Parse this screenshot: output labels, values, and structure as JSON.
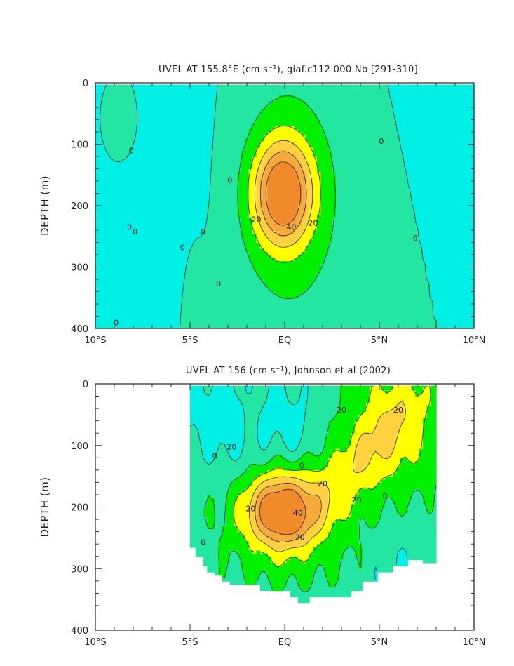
{
  "chart_data": [
    {
      "type": "heatmap",
      "title": "UVEL AT 155.8°E (cm s⁻¹), giaf.c112.000.Nb [291-310]",
      "xlabel": "",
      "ylabel": "DEPTH (m)",
      "xlim": [
        -10,
        10
      ],
      "ylim": [
        400,
        0
      ],
      "x_ticks": [
        -10,
        -5,
        0,
        5,
        10
      ],
      "x_tick_labels": [
        "10°S",
        "5°S",
        "EQ",
        "5°N",
        "10°N"
      ],
      "y_ticks": [
        0,
        100,
        200,
        300,
        400
      ],
      "y_tick_labels": [
        "0",
        "100",
        "200",
        "300",
        "400"
      ],
      "data_extent": {
        "x": [
          -10,
          10
        ],
        "depth": [
          3,
          400
        ]
      },
      "contour_interval": 10,
      "jet_core": {
        "latitude": -0.1,
        "depth": 180,
        "max_speed": 55
      },
      "contour_labels": [
        {
          "text": "0",
          "lat": -8.1,
          "depth": 110
        },
        {
          "text": "0",
          "lat": -8.2,
          "depth": 235
        },
        {
          "text": "0",
          "lat": -7.9,
          "depth": 242
        },
        {
          "text": "0",
          "lat": -5.4,
          "depth": 268
        },
        {
          "text": "0",
          "lat": -4.3,
          "depth": 242
        },
        {
          "text": "0",
          "lat": -3.5,
          "depth": 327
        },
        {
          "text": "0",
          "lat": -8.9,
          "depth": 390
        },
        {
          "text": "0",
          "lat": -2.9,
          "depth": 158
        },
        {
          "text": "0",
          "lat": 5.1,
          "depth": 95
        },
        {
          "text": "0",
          "lat": 6.9,
          "depth": 253
        },
        {
          "text": "20",
          "lat": -1.5,
          "depth": 222
        },
        {
          "text": "40",
          "lat": 0.35,
          "depth": 235
        },
        {
          "text": "20",
          "lat": 1.5,
          "depth": 228
        }
      ]
    },
    {
      "type": "heatmap",
      "title": "UVEL AT 156 (cm s⁻¹), Johnson et al (2002)",
      "xlabel": "",
      "ylabel": "DEPTH (m)",
      "xlim": [
        -10,
        10
      ],
      "ylim": [
        400,
        0
      ],
      "x_ticks": [
        -10,
        -5,
        0,
        5,
        10
      ],
      "x_tick_labels": [
        "10°S",
        "5°S",
        "EQ",
        "5°N",
        "10°N"
      ],
      "y_ticks": [
        0,
        100,
        200,
        300,
        400
      ],
      "y_tick_labels": [
        "0",
        "100",
        "200",
        "300",
        "400"
      ],
      "data_extent": {
        "x": [
          -5,
          8
        ],
        "depth": [
          3,
          355
        ]
      },
      "contour_interval": 10,
      "jet_core": {
        "latitude": -0.2,
        "depth": 205,
        "max_speed": 50
      },
      "contour_labels": [
        {
          "text": "20",
          "lat": 3.0,
          "depth": 42
        },
        {
          "text": "20",
          "lat": 6.0,
          "depth": 42
        },
        {
          "text": "20",
          "lat": -2.8,
          "depth": 102
        },
        {
          "text": "0",
          "lat": -3.7,
          "depth": 117
        },
        {
          "text": "0",
          "lat": 0.9,
          "depth": 133
        },
        {
          "text": "20",
          "lat": 2.0,
          "depth": 162
        },
        {
          "text": "20",
          "lat": -1.8,
          "depth": 202
        },
        {
          "text": "40",
          "lat": 0.7,
          "depth": 209
        },
        {
          "text": "20",
          "lat": 3.8,
          "depth": 188
        },
        {
          "text": "0",
          "lat": 5.3,
          "depth": 182
        },
        {
          "text": "20",
          "lat": 0.8,
          "depth": 249
        },
        {
          "text": "0",
          "lat": -4.3,
          "depth": 257
        }
      ]
    }
  ],
  "colors": {
    "neg": "#00f0e6",
    "c0": "#22e6a2",
    "c10": "#00f000",
    "c20": "#ffff00",
    "c30": "#ffd040",
    "c40": "#f6aa3c",
    "c50": "#f08a2a"
  }
}
